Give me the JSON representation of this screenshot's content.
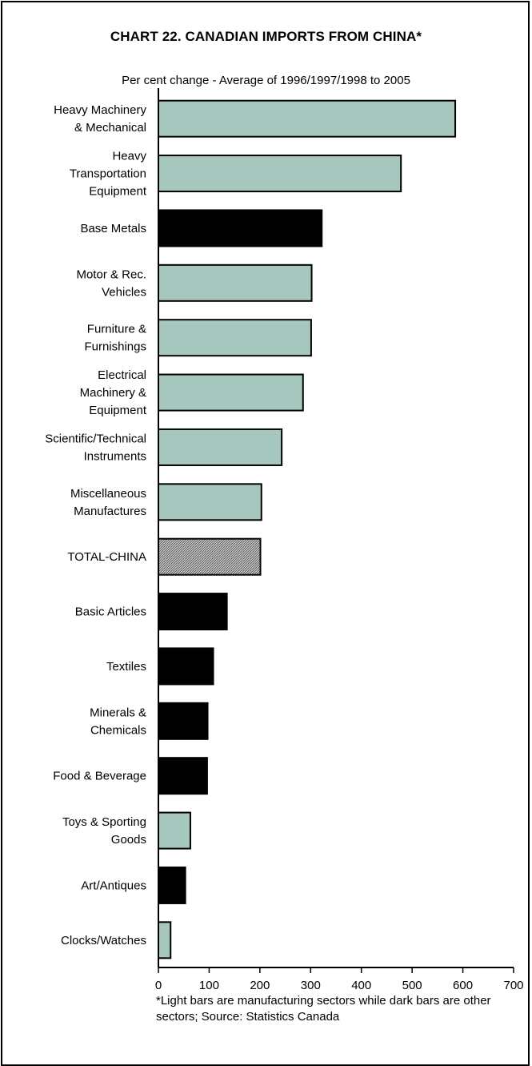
{
  "chart_data": {
    "type": "bar",
    "orientation": "horizontal",
    "title": "CHART 22. CANADIAN IMPORTS FROM CHINA*",
    "subtitle": "Per cent change - Average of 1996/1997/1998 to 2005",
    "footnote": "*Light bars are manufacturing sectors while dark bars are other sectors; Source: Statistics Canada",
    "categories": [
      [
        "Heavy Machinery",
        "& Mechanical"
      ],
      [
        "Heavy",
        "Transportation",
        "Equipment"
      ],
      [
        "Base Metals"
      ],
      [
        "Motor & Rec.",
        "Vehicles"
      ],
      [
        "Furniture &",
        "Furnishings"
      ],
      [
        "Electrical",
        "Machinery &",
        "Equipment"
      ],
      [
        "Scientific/Technical",
        "Instruments"
      ],
      [
        "Miscellaneous",
        "Manufactures"
      ],
      [
        "TOTAL-CHINA"
      ],
      [
        "Basic Articles"
      ],
      [
        "Textiles"
      ],
      [
        "Minerals &",
        "Chemicals"
      ],
      [
        "Food & Beverage"
      ],
      [
        "Toys & Sporting",
        "Goods"
      ],
      [
        "Art/Antiques"
      ],
      [
        "Clocks/Watches"
      ]
    ],
    "values": [
      585,
      478,
      322,
      302,
      301,
      285,
      243,
      203,
      201,
      135,
      108,
      97,
      96,
      63,
      53,
      24
    ],
    "bar_styles": [
      "light",
      "light",
      "dark",
      "light",
      "light",
      "light",
      "light",
      "light",
      "total",
      "dark",
      "dark",
      "dark",
      "dark",
      "light",
      "dark",
      "light"
    ],
    "xlim": [
      0,
      700
    ],
    "xticks": [
      "0",
      "100",
      "200",
      "300",
      "400",
      "500",
      "600",
      "700"
    ],
    "grid": false,
    "colors": {
      "light": "#a5c7be",
      "dark": "#000000",
      "total": "#a3a3a3",
      "outline": "#000000"
    }
  }
}
